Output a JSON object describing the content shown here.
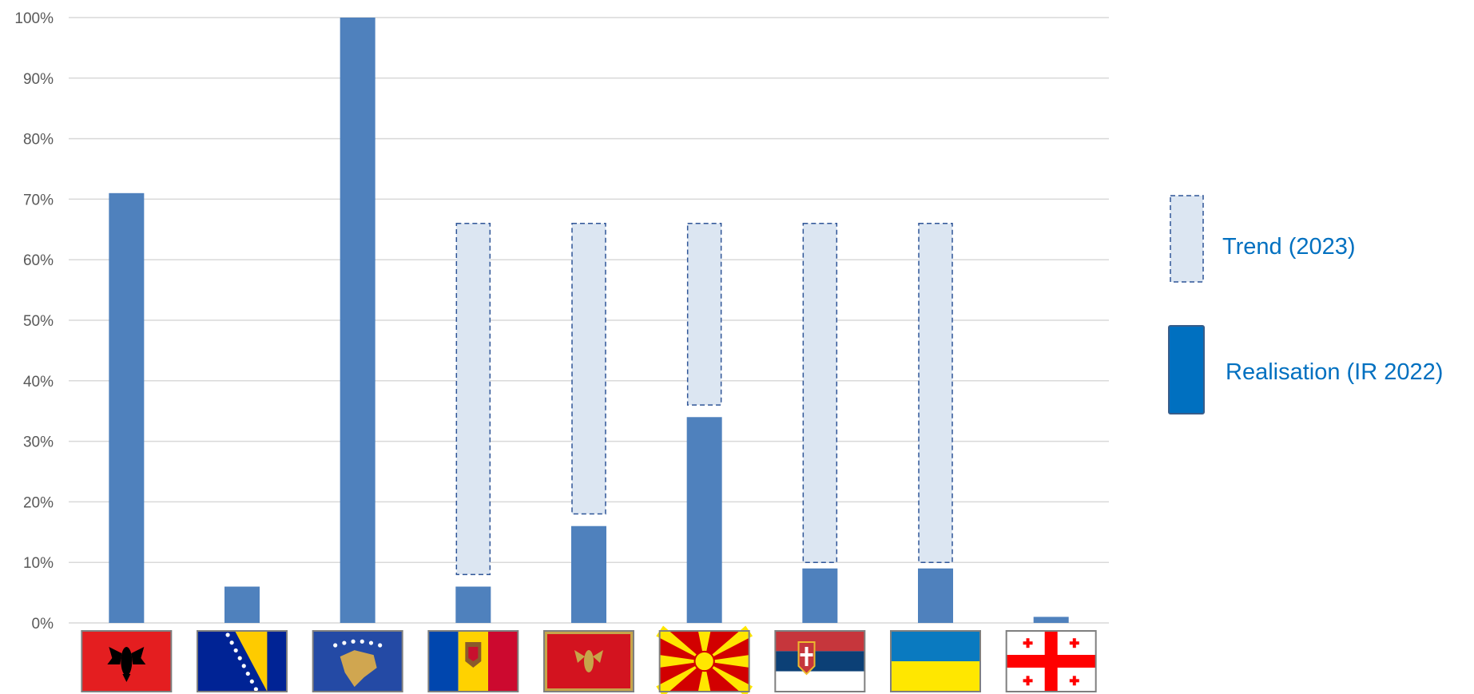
{
  "chart_data": {
    "type": "bar",
    "categories": [
      "Albania",
      "Bosnia and Herzegovina",
      "Kosovo",
      "Moldova",
      "Montenegro",
      "North Macedonia",
      "Serbia",
      "Ukraine",
      "Georgia"
    ],
    "series": [
      {
        "name": "Realisation (IR 2022)",
        "values": [
          71,
          6,
          100,
          6,
          16,
          34,
          9,
          9,
          1
        ]
      },
      {
        "name": "Trend (2023)",
        "ranges": [
          null,
          null,
          null,
          [
            8,
            66
          ],
          [
            18,
            66
          ],
          [
            36,
            66
          ],
          [
            10,
            66
          ],
          [
            10,
            66
          ],
          null
        ]
      }
    ],
    "ylim": [
      0,
      100
    ],
    "yticks": [
      "0%",
      "10%",
      "20%",
      "30%",
      "40%",
      "50%",
      "60%",
      "70%",
      "80%",
      "90%",
      "100%"
    ],
    "grid": true,
    "legend": "right",
    "colors": {
      "realisation": "#4f81bd",
      "trend_fill": "#dce6f2",
      "trend_border": "#2f5597",
      "legend_realisation": "#0070c0",
      "legend_text": "#0070c0",
      "grid": "#d9d9d9",
      "tick_text": "#595959"
    },
    "x_axis_icons": [
      "albania-flag-icon",
      "bosnia-flag-icon",
      "kosovo-flag-icon",
      "moldova-flag-icon",
      "montenegro-flag-icon",
      "north-macedonia-flag-icon",
      "serbia-flag-icon",
      "ukraine-flag-icon",
      "georgia-flag-icon"
    ]
  },
  "legend": {
    "trend_label": "Trend (2023)",
    "realisation_label": "Realisation (IR 2022)"
  }
}
